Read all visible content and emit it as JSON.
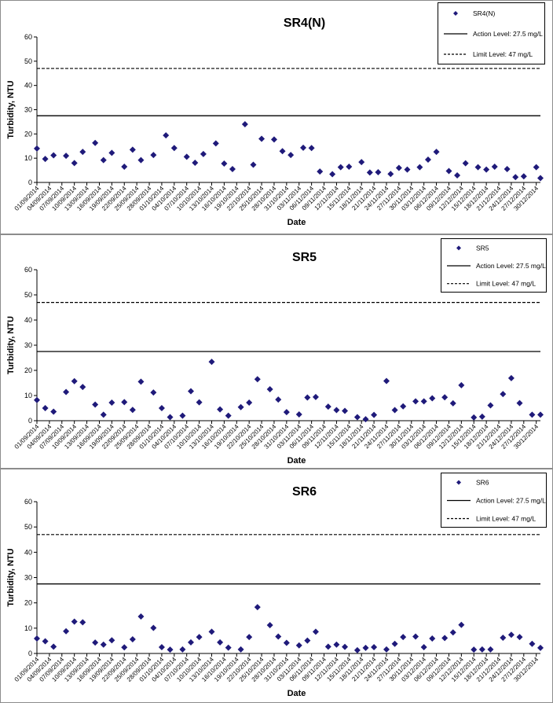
{
  "chart_data": [
    {
      "type": "scatter",
      "title": "SR4(N)",
      "xlabel": "Date",
      "ylabel": "Turbidity, NTU",
      "ylim": [
        0,
        60
      ],
      "yticks": [
        0,
        10,
        20,
        30,
        40,
        50,
        60
      ],
      "x_range": [
        "01/09/2014",
        "31/12/2014"
      ],
      "x_ticks": [
        "01/09/2014",
        "04/09/2014",
        "07/09/2014",
        "10/09/2014",
        "13/09/2014",
        "16/09/2014",
        "19/09/2014",
        "22/09/2014",
        "25/09/2014",
        "28/09/2014",
        "01/10/2014",
        "04/10/2014",
        "07/10/2014",
        "10/10/2014",
        "13/10/2014",
        "16/10/2014",
        "19/10/2014",
        "22/10/2014",
        "25/10/2014",
        "28/10/2014",
        "31/10/2014",
        "03/11/2014",
        "06/11/2014",
        "09/11/2014",
        "12/11/2014",
        "15/11/2014",
        "18/11/2014",
        "21/11/2014",
        "24/11/2014",
        "27/11/2014",
        "30/11/2014",
        "03/12/2014",
        "06/12/2014",
        "09/12/2014",
        "12/12/2014",
        "15/12/2014",
        "18/12/2014",
        "21/12/2014",
        "24/12/2014",
        "27/12/2014",
        "30/12/2014"
      ],
      "grid": false,
      "legend_position": "top-right",
      "legend": [
        {
          "label": "SR4(N)",
          "kind": "marker"
        },
        {
          "label": "Action Level: 27.5 mg/L",
          "kind": "solid"
        },
        {
          "label": "Limit Level: 47 mg/L",
          "kind": "dashed"
        }
      ],
      "reference_lines": [
        {
          "name": "Action Level: 27.5 mg/L",
          "value": 27.5,
          "style": "solid"
        },
        {
          "name": "Limit Level: 47 mg/L",
          "value": 47,
          "style": "dashed"
        }
      ],
      "series": [
        {
          "name": "SR4(N)",
          "color": "#1f1a7a",
          "points": [
            [
              "01/09/2014",
              14.0
            ],
            [
              "03/09/2014",
              9.7
            ],
            [
              "05/09/2014",
              11.2
            ],
            [
              "08/09/2014",
              11.0
            ],
            [
              "10/09/2014",
              8.0
            ],
            [
              "12/09/2014",
              12.6
            ],
            [
              "15/09/2014",
              16.3
            ],
            [
              "17/09/2014",
              9.2
            ],
            [
              "19/09/2014",
              12.2
            ],
            [
              "22/09/2014",
              6.5
            ],
            [
              "24/09/2014",
              13.5
            ],
            [
              "26/09/2014",
              9.2
            ],
            [
              "29/09/2014",
              11.3
            ],
            [
              "02/10/2014",
              19.4
            ],
            [
              "04/10/2014",
              14.2
            ],
            [
              "07/10/2014",
              10.6
            ],
            [
              "09/10/2014",
              8.1
            ],
            [
              "11/10/2014",
              11.7
            ],
            [
              "14/10/2014",
              16.1
            ],
            [
              "16/10/2014",
              7.8
            ],
            [
              "18/10/2014",
              5.5
            ],
            [
              "21/10/2014",
              24.0
            ],
            [
              "23/10/2014",
              7.3
            ],
            [
              "25/10/2014",
              18.0
            ],
            [
              "28/10/2014",
              17.7
            ],
            [
              "30/10/2014",
              12.9
            ],
            [
              "01/11/2014",
              11.3
            ],
            [
              "04/11/2014",
              14.3
            ],
            [
              "06/11/2014",
              14.2
            ],
            [
              "08/11/2014",
              4.5
            ],
            [
              "11/11/2014",
              3.4
            ],
            [
              "13/11/2014",
              6.3
            ],
            [
              "15/11/2014",
              6.5
            ],
            [
              "18/11/2014",
              8.4
            ],
            [
              "20/11/2014",
              4.1
            ],
            [
              "22/11/2014",
              4.2
            ],
            [
              "25/11/2014",
              3.5
            ],
            [
              "27/11/2014",
              6.0
            ],
            [
              "29/11/2014",
              5.3
            ],
            [
              "02/12/2014",
              6.3
            ],
            [
              "04/12/2014",
              9.4
            ],
            [
              "06/12/2014",
              12.6
            ],
            [
              "09/12/2014",
              4.7
            ],
            [
              "11/12/2014",
              2.9
            ],
            [
              "13/12/2014",
              7.9
            ],
            [
              "16/12/2014",
              6.3
            ],
            [
              "18/12/2014",
              5.3
            ],
            [
              "20/12/2014",
              6.5
            ],
            [
              "23/12/2014",
              5.5
            ],
            [
              "25/12/2014",
              2.2
            ],
            [
              "27/12/2014",
              2.5
            ],
            [
              "30/12/2014",
              6.3
            ],
            [
              "31/12/2014",
              1.8
            ]
          ]
        }
      ]
    },
    {
      "type": "scatter",
      "title": "SR5",
      "xlabel": "Date",
      "ylabel": "Turbidity, NTU",
      "ylim": [
        0,
        60
      ],
      "yticks": [
        0,
        10,
        20,
        30,
        40,
        50,
        60
      ],
      "x_range": [
        "01/09/2014",
        "31/12/2014"
      ],
      "x_ticks": [
        "01/09/2014",
        "04/09/2014",
        "07/09/2014",
        "10/09/2014",
        "13/09/2014",
        "16/09/2014",
        "19/09/2014",
        "22/09/2014",
        "25/09/2014",
        "28/09/2014",
        "01/10/2014",
        "04/10/2014",
        "07/10/2014",
        "10/10/2014",
        "13/10/2014",
        "16/10/2014",
        "19/10/2014",
        "22/10/2014",
        "25/10/2014",
        "28/10/2014",
        "31/10/2014",
        "03/11/2014",
        "06/11/2014",
        "09/11/2014",
        "12/11/2014",
        "15/11/2014",
        "18/11/2014",
        "21/11/2014",
        "24/11/2014",
        "27/11/2014",
        "30/11/2014",
        "03/12/2014",
        "06/12/2014",
        "09/12/2014",
        "12/12/2014",
        "15/12/2014",
        "18/12/2014",
        "21/12/2014",
        "24/12/2014",
        "27/12/2014",
        "30/12/2014"
      ],
      "grid": false,
      "legend_position": "top-right",
      "legend": [
        {
          "label": "SR5",
          "kind": "marker"
        },
        {
          "label": "Action Level: 27.5 mg/L",
          "kind": "solid"
        },
        {
          "label": "Limit Level: 47 mg/L",
          "kind": "dashed"
        }
      ],
      "reference_lines": [
        {
          "name": "Action Level: 27.5 mg/L",
          "value": 27.5,
          "style": "solid"
        },
        {
          "name": "Limit Level: 47 mg/L",
          "value": 47,
          "style": "dashed"
        }
      ],
      "series": [
        {
          "name": "SR5",
          "color": "#1f1a7a",
          "points": [
            [
              "01/09/2014",
              8.2
            ],
            [
              "03/09/2014",
              5.0
            ],
            [
              "05/09/2014",
              3.6
            ],
            [
              "08/09/2014",
              11.4
            ],
            [
              "10/09/2014",
              15.7
            ],
            [
              "12/09/2014",
              13.4
            ],
            [
              "15/09/2014",
              6.4
            ],
            [
              "17/09/2014",
              2.4
            ],
            [
              "19/09/2014",
              7.2
            ],
            [
              "22/09/2014",
              7.4
            ],
            [
              "24/09/2014",
              4.3
            ],
            [
              "26/09/2014",
              15.5
            ],
            [
              "29/09/2014",
              11.2
            ],
            [
              "01/10/2014",
              5.0
            ],
            [
              "03/10/2014",
              1.4
            ],
            [
              "06/10/2014",
              2.0
            ],
            [
              "08/10/2014",
              11.7
            ],
            [
              "10/10/2014",
              7.3
            ],
            [
              "13/10/2014",
              23.4
            ],
            [
              "15/10/2014",
              4.5
            ],
            [
              "17/10/2014",
              2.0
            ],
            [
              "20/10/2014",
              5.4
            ],
            [
              "22/10/2014",
              7.2
            ],
            [
              "24/10/2014",
              16.5
            ],
            [
              "27/10/2014",
              12.5
            ],
            [
              "29/10/2014",
              8.4
            ],
            [
              "31/10/2014",
              3.4
            ],
            [
              "03/11/2014",
              2.5
            ],
            [
              "05/11/2014",
              9.2
            ],
            [
              "07/11/2014",
              9.4
            ],
            [
              "10/11/2014",
              5.6
            ],
            [
              "12/11/2014",
              4.2
            ],
            [
              "14/11/2014",
              3.9
            ],
            [
              "17/11/2014",
              1.4
            ],
            [
              "19/11/2014",
              0.6
            ],
            [
              "21/11/2014",
              2.3
            ],
            [
              "24/11/2014",
              15.8
            ],
            [
              "26/11/2014",
              4.2
            ],
            [
              "28/11/2014",
              5.7
            ],
            [
              "01/12/2014",
              7.7
            ],
            [
              "03/12/2014",
              7.7
            ],
            [
              "05/12/2014",
              8.9
            ],
            [
              "08/12/2014",
              9.3
            ],
            [
              "10/12/2014",
              6.9
            ],
            [
              "12/12/2014",
              14.1
            ],
            [
              "15/12/2014",
              1.3
            ],
            [
              "17/12/2014",
              1.6
            ],
            [
              "19/12/2014",
              6.1
            ],
            [
              "22/12/2014",
              10.6
            ],
            [
              "24/12/2014",
              16.9
            ],
            [
              "26/12/2014",
              7.0
            ],
            [
              "29/12/2014",
              2.4
            ],
            [
              "31/12/2014",
              2.4
            ]
          ]
        }
      ]
    },
    {
      "type": "scatter",
      "title": "SR6",
      "xlabel": "Date",
      "ylabel": "Turbidity, NTU",
      "ylim": [
        0,
        60
      ],
      "yticks": [
        0,
        10,
        20,
        30,
        40,
        50,
        60
      ],
      "x_range": [
        "01/09/2014",
        "31/12/2014"
      ],
      "x_ticks": [
        "01/09/2014",
        "04/09/2014",
        "07/09/2014",
        "10/09/2014",
        "13/09/2014",
        "16/09/2014",
        "19/09/2014",
        "22/09/2014",
        "25/09/2014",
        "28/09/2014",
        "01/10/2014",
        "04/10/2014",
        "07/10/2014",
        "10/10/2014",
        "13/10/2014",
        "16/10/2014",
        "19/10/2014",
        "22/10/2014",
        "25/10/2014",
        "28/10/2014",
        "31/10/2014",
        "03/11/2014",
        "06/11/2014",
        "09/11/2014",
        "12/11/2014",
        "15/11/2014",
        "18/11/2014",
        "21/11/2014",
        "24/11/2014",
        "27/11/2014",
        "30/11/2014",
        "03/12/2014",
        "06/12/2014",
        "09/12/2014",
        "12/12/2014",
        "15/12/2014",
        "18/12/2014",
        "21/12/2014",
        "24/12/2014",
        "27/12/2014",
        "30/12/2014"
      ],
      "grid": false,
      "legend_position": "top-right",
      "legend": [
        {
          "label": "SR6",
          "kind": "marker"
        },
        {
          "label": "Action Level: 27.5 mg/L",
          "kind": "solid"
        },
        {
          "label": "Limit Level: 47 mg/L",
          "kind": "dashed"
        }
      ],
      "reference_lines": [
        {
          "name": "Action Level: 27.5 mg/L",
          "value": 27.5,
          "style": "solid"
        },
        {
          "name": "Limit Level: 47 mg/L",
          "value": 47,
          "style": "dashed"
        }
      ],
      "series": [
        {
          "name": "SR6",
          "color": "#1f1a7a",
          "points": [
            [
              "01/09/2014",
              5.9
            ],
            [
              "03/09/2014",
              4.8
            ],
            [
              "05/09/2014",
              2.7
            ],
            [
              "08/09/2014",
              8.8
            ],
            [
              "10/09/2014",
              12.6
            ],
            [
              "12/09/2014",
              12.3
            ],
            [
              "15/09/2014",
              4.3
            ],
            [
              "17/09/2014",
              3.5
            ],
            [
              "19/09/2014",
              5.2
            ],
            [
              "22/09/2014",
              2.4
            ],
            [
              "24/09/2014",
              5.6
            ],
            [
              "26/09/2014",
              14.6
            ],
            [
              "29/09/2014",
              10.1
            ],
            [
              "01/10/2014",
              2.5
            ],
            [
              "03/10/2014",
              1.5
            ],
            [
              "06/10/2014",
              1.6
            ],
            [
              "08/10/2014",
              4.4
            ],
            [
              "10/10/2014",
              6.5
            ],
            [
              "13/10/2014",
              8.6
            ],
            [
              "15/10/2014",
              4.4
            ],
            [
              "17/10/2014",
              2.3
            ],
            [
              "20/10/2014",
              1.6
            ],
            [
              "22/10/2014",
              6.5
            ],
            [
              "24/10/2014",
              18.3
            ],
            [
              "27/10/2014",
              11.2
            ],
            [
              "29/10/2014",
              6.7
            ],
            [
              "31/10/2014",
              4.2
            ],
            [
              "03/11/2014",
              3.2
            ],
            [
              "05/11/2014",
              5.1
            ],
            [
              "07/11/2014",
              8.6
            ],
            [
              "10/11/2014",
              2.7
            ],
            [
              "12/11/2014",
              3.5
            ],
            [
              "14/11/2014",
              2.6
            ],
            [
              "17/11/2014",
              1.3
            ],
            [
              "19/11/2014",
              2.2
            ],
            [
              "21/11/2014",
              2.5
            ],
            [
              "24/11/2014",
              1.6
            ],
            [
              "26/11/2014",
              3.8
            ],
            [
              "28/11/2014",
              6.5
            ],
            [
              "01/12/2014",
              6.7
            ],
            [
              "03/12/2014",
              2.5
            ],
            [
              "05/12/2014",
              5.9
            ],
            [
              "08/12/2014",
              6.1
            ],
            [
              "10/12/2014",
              8.3
            ],
            [
              "12/12/2014",
              11.3
            ],
            [
              "15/12/2014",
              1.5
            ],
            [
              "17/12/2014",
              1.6
            ],
            [
              "19/12/2014",
              1.6
            ],
            [
              "22/12/2014",
              6.2
            ],
            [
              "24/12/2014",
              7.4
            ],
            [
              "26/12/2014",
              6.5
            ],
            [
              "29/12/2014",
              3.8
            ],
            [
              "31/12/2014",
              2.2
            ]
          ]
        }
      ]
    }
  ]
}
